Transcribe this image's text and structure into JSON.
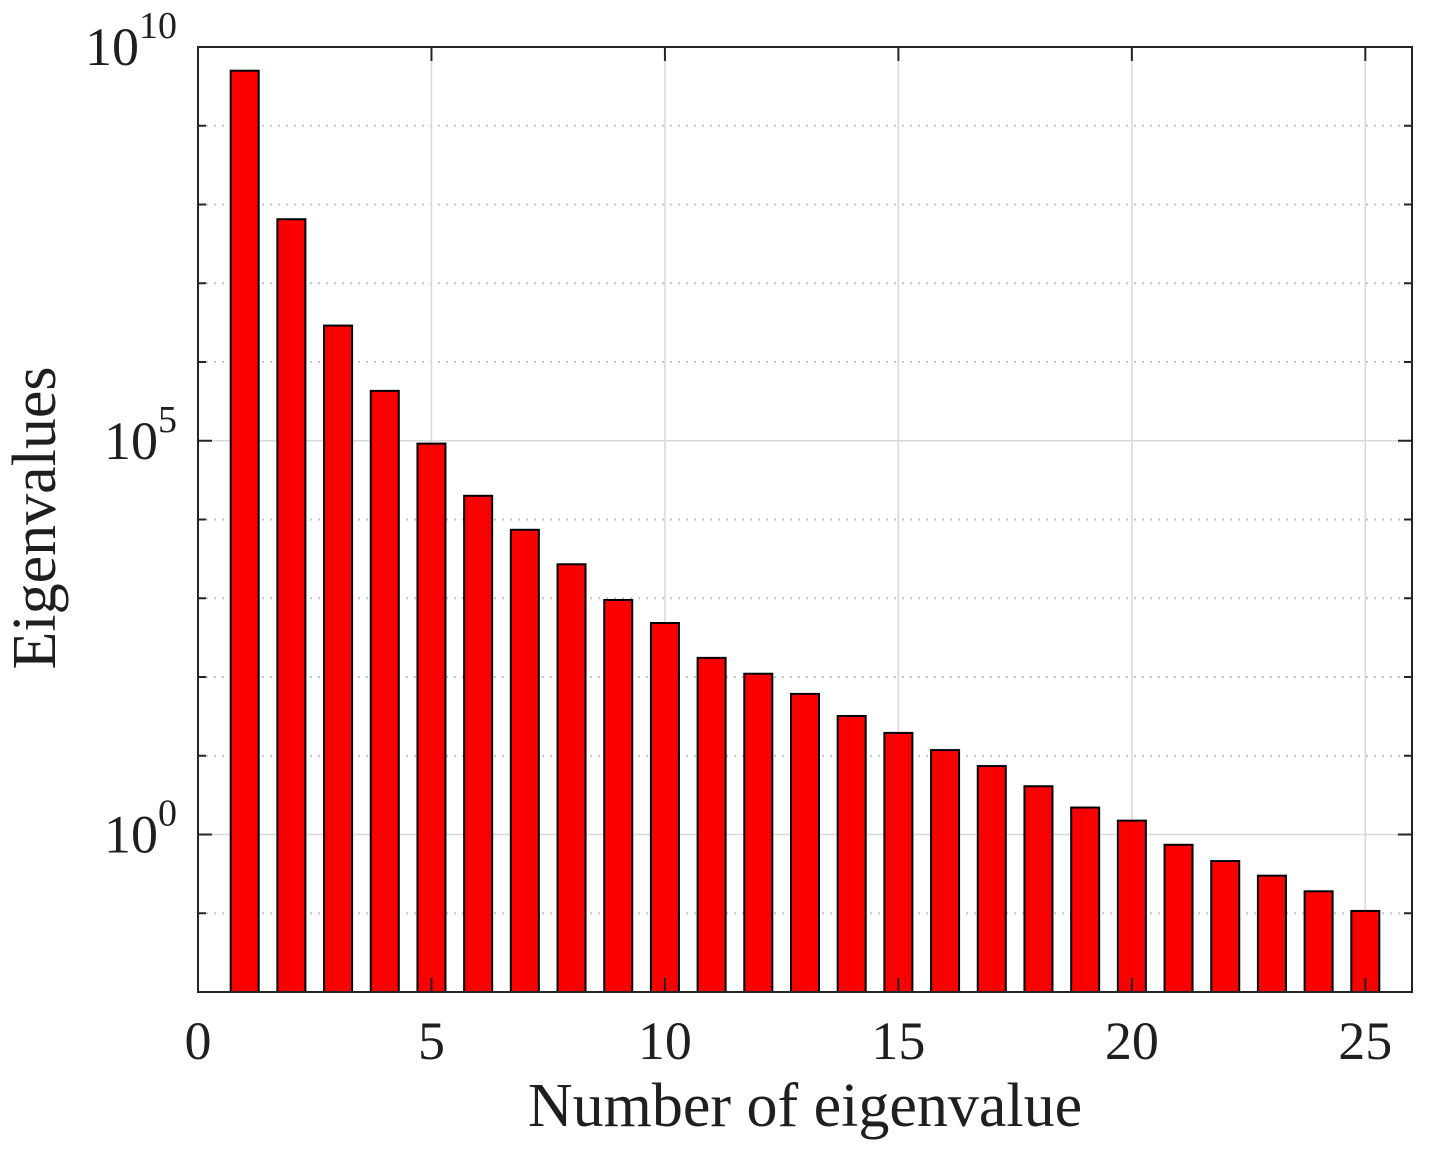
{
  "figure": {
    "background": "#ffffff"
  },
  "chart_data": {
    "type": "bar",
    "title": "",
    "xlabel": "Number of eigenvalue",
    "ylabel": "Eigenvalues",
    "x": [
      1,
      2,
      3,
      4,
      5,
      6,
      7,
      8,
      9,
      10,
      11,
      12,
      13,
      14,
      15,
      16,
      17,
      18,
      19,
      20,
      21,
      22,
      23,
      24,
      25
    ],
    "values": [
      5000000000.0,
      65000000.0,
      2900000.0,
      430000.0,
      92000.0,
      20000.0,
      7400.0,
      2700.0,
      950,
      485,
      175,
      110,
      61,
      32,
      19.5,
      11.8,
      7.4,
      4.1,
      2.2,
      1.5,
      0.74,
      0.46,
      0.3,
      0.19,
      0.107
    ],
    "yscale": "log",
    "xlim": [
      0,
      26
    ],
    "ylim": [
      0.01,
      10000000000.0
    ],
    "ylim_exponents": [
      -2,
      10
    ],
    "x_ticks": [
      0,
      5,
      10,
      15,
      20,
      25
    ],
    "x_tick_labels": [
      "0",
      "5",
      "10",
      "15",
      "20",
      "25"
    ],
    "y_tick_exponents": [
      10,
      5,
      0
    ],
    "y_tick_base": "10",
    "bar_width_units": 0.6,
    "grid": {
      "major": true,
      "minor": true,
      "major_style": "solid",
      "minor_style": "dotted",
      "major_color": "#d9d9d9",
      "minor_color": "#c4c4c4"
    },
    "colors": {
      "bar_fill": "#fa0000",
      "bar_edge": "#000000",
      "axis": "#242424",
      "text": "#1f1f1f",
      "background": "#ffffff"
    },
    "legend": null
  }
}
